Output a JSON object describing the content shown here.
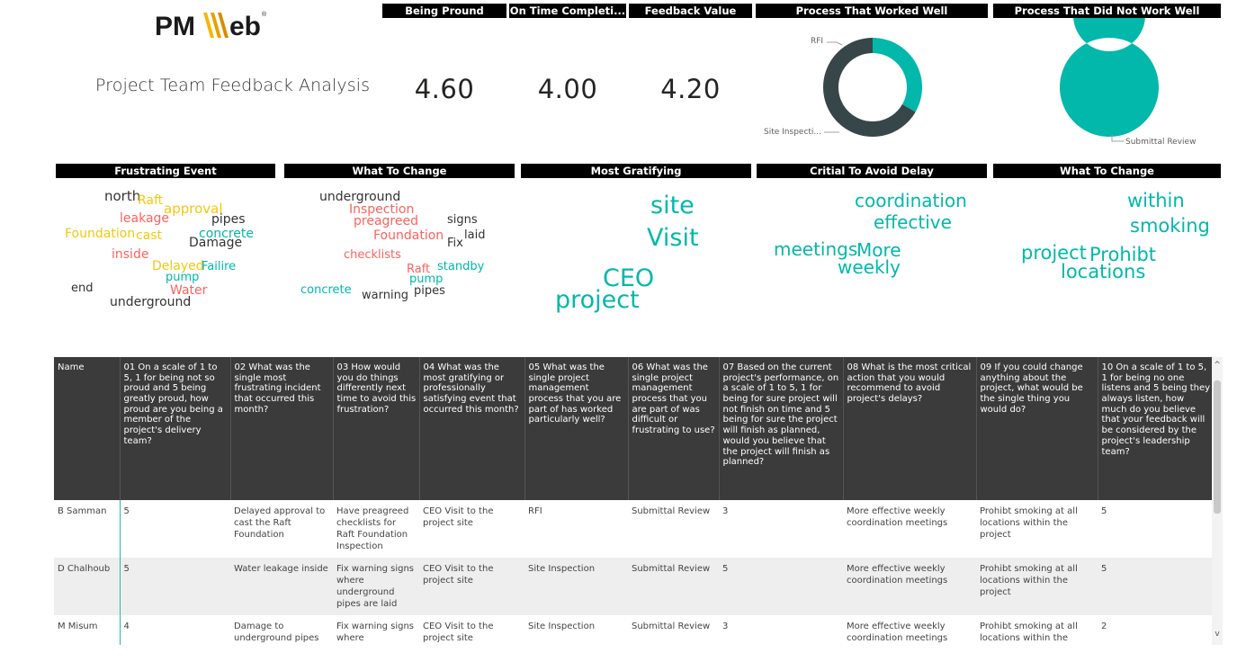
{
  "brand": {
    "logo_text": "PMWeb",
    "accent": "#01B8AA",
    "dark": "#374649"
  },
  "report": {
    "title": "Project Team Feedback Analysis"
  },
  "kpis": [
    {
      "label": "Being Pround",
      "value": "4.60"
    },
    {
      "label": "On Time Completi...",
      "value": "4.00"
    },
    {
      "label": "Feedback Value",
      "value": "4.20"
    }
  ],
  "chart_data": [
    {
      "type": "pie",
      "title": "Process That Worked Well",
      "categories": [
        "RFI",
        "Site Inspecti..."
      ],
      "values": [
        1,
        2
      ],
      "colors": [
        "#01B8AA",
        "#374649"
      ]
    },
    {
      "type": "pie",
      "title": "Process That Did Not Work Well",
      "categories": [
        "Submittal Review"
      ],
      "values": [
        3
      ],
      "colors": [
        "#01B8AA"
      ]
    }
  ],
  "wordclouds": [
    {
      "title": "Frustrating Event",
      "words": [
        {
          "text": "north",
          "color": "#333333"
        },
        {
          "text": "Raft",
          "color": "#F2C80F"
        },
        {
          "text": "approval",
          "color": "#F2C80F"
        },
        {
          "text": "leakage",
          "color": "#FD625E"
        },
        {
          "text": "pipes",
          "color": "#333333"
        },
        {
          "text": "Foundation",
          "color": "#F2C80F"
        },
        {
          "text": "cast",
          "color": "#F2C80F"
        },
        {
          "text": "concrete",
          "color": "#01B8AA"
        },
        {
          "text": "Damage",
          "color": "#333333"
        },
        {
          "text": "inside",
          "color": "#FD625E"
        },
        {
          "text": "Delayed",
          "color": "#F2C80F"
        },
        {
          "text": "Failire",
          "color": "#01B8AA"
        },
        {
          "text": "pump",
          "color": "#01B8AA"
        },
        {
          "text": "end",
          "color": "#333333"
        },
        {
          "text": "Water",
          "color": "#FD625E"
        },
        {
          "text": "underground",
          "color": "#333333"
        }
      ]
    },
    {
      "title": "What To Change",
      "words": [
        {
          "text": "underground",
          "color": "#333333"
        },
        {
          "text": "Inspection",
          "color": "#FD625E"
        },
        {
          "text": "preagreed",
          "color": "#FD625E"
        },
        {
          "text": "signs",
          "color": "#333333"
        },
        {
          "text": "Foundation",
          "color": "#FD625E"
        },
        {
          "text": "laid",
          "color": "#333333"
        },
        {
          "text": "Fix",
          "color": "#333333"
        },
        {
          "text": "checklists",
          "color": "#FD625E"
        },
        {
          "text": "standby",
          "color": "#01B8AA"
        },
        {
          "text": "Raft",
          "color": "#FD625E"
        },
        {
          "text": "pump",
          "color": "#01B8AA"
        },
        {
          "text": "concrete",
          "color": "#01B8AA"
        },
        {
          "text": "pipes",
          "color": "#333333"
        },
        {
          "text": "warning",
          "color": "#333333"
        }
      ]
    },
    {
      "title": "Most Gratifying",
      "words": [
        {
          "text": "site",
          "color": "#01B8AA"
        },
        {
          "text": "Visit",
          "color": "#01B8AA"
        },
        {
          "text": "CEO",
          "color": "#01B8AA"
        },
        {
          "text": "project",
          "color": "#01B8AA"
        }
      ]
    },
    {
      "title": "Critial To Avoid Delay",
      "words": [
        {
          "text": "coordination",
          "color": "#01B8AA"
        },
        {
          "text": "effective",
          "color": "#01B8AA"
        },
        {
          "text": "meetings",
          "color": "#01B8AA"
        },
        {
          "text": "More",
          "color": "#01B8AA"
        },
        {
          "text": "weekly",
          "color": "#01B8AA"
        }
      ]
    },
    {
      "title": "What To Change",
      "words": [
        {
          "text": "within",
          "color": "#01B8AA"
        },
        {
          "text": "smoking",
          "color": "#01B8AA"
        },
        {
          "text": "project",
          "color": "#01B8AA"
        },
        {
          "text": "Prohibt",
          "color": "#01B8AA"
        },
        {
          "text": "locations",
          "color": "#01B8AA"
        }
      ]
    }
  ],
  "table": {
    "columns": [
      "Name",
      "01 On a scale of 1 to 5, 1 for being not so proud and 5 being greatly proud, how proud are you being a member of the project's delivery team?",
      "02 What was the single most frustrating incident that occurred this month?",
      "03 How would you do things differently next time to avoid this frustration?",
      "04 What was the most gratifying or professionally satisfying event that occurred this month?",
      "05 What was the single project management process that you are part of has worked particularly well?",
      "06 What was the single project management process that you are part of was difficult or frustrating to use?",
      "07 Based on the current project's performance, on a scale of 1 to 5, 1 for being for sure project will not finish on time and 5 being for sure the project will finish as planned, would you believe that the project will finish as planned?",
      "08 What is the most critical action that you would recommend to avoid project's delays?",
      "09 If you could change anything about the project, what would be the single thing you would do?",
      "10 On a scale of 1 to 5, 1 for being no one listens and 5 being they always listen, how much do you believe that your feedback will be considered by the project's leadership team?"
    ],
    "rows": [
      [
        "B Samman",
        "5",
        "Delayed approval to cast the Raft Foundation",
        "Have preagreed checklists for Raft Foundation Inspection",
        "CEO Visit to the project site",
        "RFI",
        "Submittal Review",
        "3",
        "More effective weekly coordination meetings",
        "Prohibt smoking at all locations within the project",
        "5"
      ],
      [
        "D Chalhoub",
        "5",
        "Water leakage inside",
        "Fix warning signs where underground pipes are laid",
        "CEO Visit to the project site",
        "Site Inspection",
        "Submittal Review",
        "5",
        "More effective weekly coordination meetings",
        "Prohibt smoking at all locations within the project",
        "5"
      ],
      [
        "M Misum",
        "4",
        "Damage to underground pipes",
        "Fix warning signs where",
        "CEO Visit to the project site",
        "Site Inspection",
        "Submittal Review",
        "3",
        "More effective weekly coordination meetings",
        "Prohibt smoking at all locations within the",
        "2"
      ]
    ]
  },
  "scrollbar": {
    "up_glyph": "^",
    "down_glyph": "v"
  }
}
